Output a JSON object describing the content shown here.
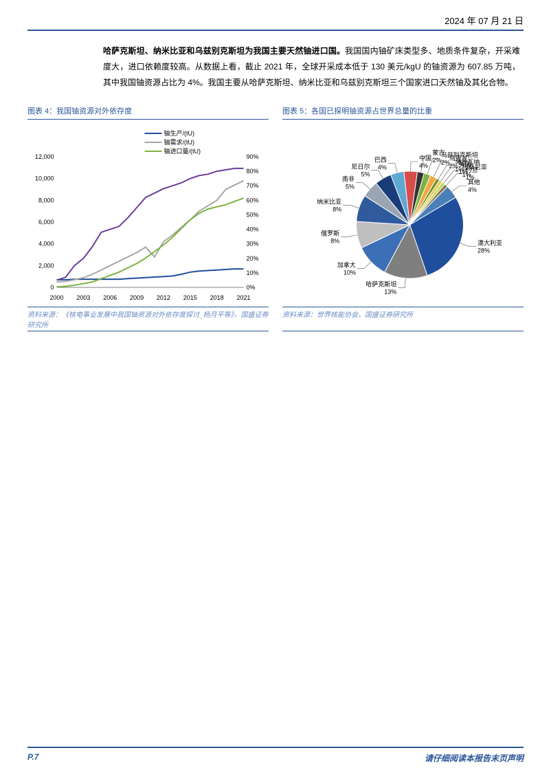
{
  "header": {
    "date": "2024 年 07 月 21 日"
  },
  "body": {
    "bold_lead": "哈萨克斯坦、纳米比亚和乌兹别克斯坦为我国主要天然铀进口国。",
    "rest": "我国国内铀矿床类型多、地质条件复杂，开采难度大，进口依赖度较高。从数据上看，截止 2021 年，全球开采成本低于 130 美元/kgU 的铀资源为 607.85 万吨，其中我国铀资源占比为 4%。我国主要从哈萨克斯坦、纳米比亚和乌兹别克斯坦三个国家进口天然铀及其化合物。"
  },
  "chart4": {
    "title": "图表 4：我国铀资源对外依存度",
    "type": "line-dual-axis",
    "legend": [
      {
        "label": "铀生产/(tU)",
        "color": "#1f4e9c"
      },
      {
        "label": "铀需求/(tU)",
        "color": "#a6a6a6"
      },
      {
        "label": "铀进口量/(tU)",
        "color": "#7cb342"
      }
    ],
    "right_axis_series": {
      "color": "#6a3d9a"
    },
    "x_categories": [
      "2000",
      "2003",
      "2006",
      "2009",
      "2012",
      "2015",
      "2018",
      "2021"
    ],
    "left_axis": {
      "min": 0,
      "max": 12000,
      "step": 2000
    },
    "right_axis": {
      "min": 0,
      "max": 90,
      "step": 10,
      "suffix": "%"
    },
    "years": [
      2000,
      2001,
      2002,
      2003,
      2004,
      2005,
      2006,
      2007,
      2008,
      2009,
      2010,
      2011,
      2012,
      2013,
      2014,
      2015,
      2016,
      2017,
      2018,
      2019,
      2020,
      2021
    ],
    "production": [
      700,
      700,
      750,
      750,
      750,
      750,
      750,
      750,
      800,
      850,
      900,
      950,
      1000,
      1050,
      1200,
      1400,
      1500,
      1550,
      1600,
      1650,
      1700,
      1700
    ],
    "demand": [
      500,
      550,
      700,
      900,
      1200,
      1600,
      2000,
      2400,
      2800,
      3200,
      3700,
      2800,
      4200,
      4800,
      5500,
      6200,
      7000,
      7500,
      8000,
      9000,
      9400,
      9800
    ],
    "imports": [
      50,
      100,
      200,
      350,
      500,
      800,
      1100,
      1400,
      1800,
      2200,
      2700,
      3300,
      3900,
      4600,
      5400,
      6200,
      6800,
      7200,
      7400,
      7600,
      7900,
      8200
    ],
    "dependency": [
      5,
      7,
      15,
      20,
      28,
      38,
      40,
      42,
      48,
      55,
      62,
      65,
      68,
      70,
      72,
      75,
      77,
      78,
      80,
      81,
      82,
      82
    ],
    "background": "#ffffff",
    "grid_color": "#d9d9d9",
    "axis_fontsize": 9,
    "legend_fontsize": 9,
    "source": "资料来源：《核电事业发展中我国铀资源对外依存度探讨_杨月平等》，国盛证券研究所"
  },
  "chart5": {
    "title": "图表 5：各国已探明铀资源占世界总量的比重",
    "type": "pie",
    "slices": [
      {
        "label": "澳大利亚",
        "value": 28,
        "color": "#1f4e9c"
      },
      {
        "label": "哈萨克斯坦",
        "value": 13,
        "color": "#7f7f7f"
      },
      {
        "label": "加拿大",
        "value": 10,
        "color": "#3b6fb6"
      },
      {
        "label": "俄罗斯",
        "value": 8,
        "color": "#bfbfbf"
      },
      {
        "label": "纳米比亚",
        "value": 8,
        "color": "#2f5a9e"
      },
      {
        "label": "南非",
        "value": 5,
        "color": "#9aa5b1"
      },
      {
        "label": "尼日尔",
        "value": 5,
        "color": "#1a3d7a"
      },
      {
        "label": "巴西",
        "value": 4,
        "color": "#5fa8d3"
      },
      {
        "label": "中国",
        "value": 4,
        "color": "#d94c4c"
      },
      {
        "label": "蒙古",
        "value": 2,
        "color": "#333333"
      },
      {
        "label": "乌兹别克斯坦",
        "value": 2,
        "color": "#7cb342"
      },
      {
        "label": "乌克兰",
        "value": 2,
        "color": "#f4a742"
      },
      {
        "label": "博茨瓦纳",
        "value": 1,
        "color": "#6b8e23"
      },
      {
        "label": "美国",
        "value": 1,
        "color": "#e6c84f"
      },
      {
        "label": "坦桑尼亚",
        "value": 1,
        "color": "#c0d860"
      },
      {
        "label": "约旦",
        "value": 1,
        "color": "#8b6f47"
      },
      {
        "label": "其他",
        "value": 4,
        "color": "#4a7fb8"
      }
    ],
    "label_fontsize": 9,
    "background": "#ffffff",
    "source": "资料来源：世界核能协会，国盛证券研究所"
  },
  "footer": {
    "page": "P.7",
    "disclaimer": "请仔细阅读本报告末页声明"
  }
}
